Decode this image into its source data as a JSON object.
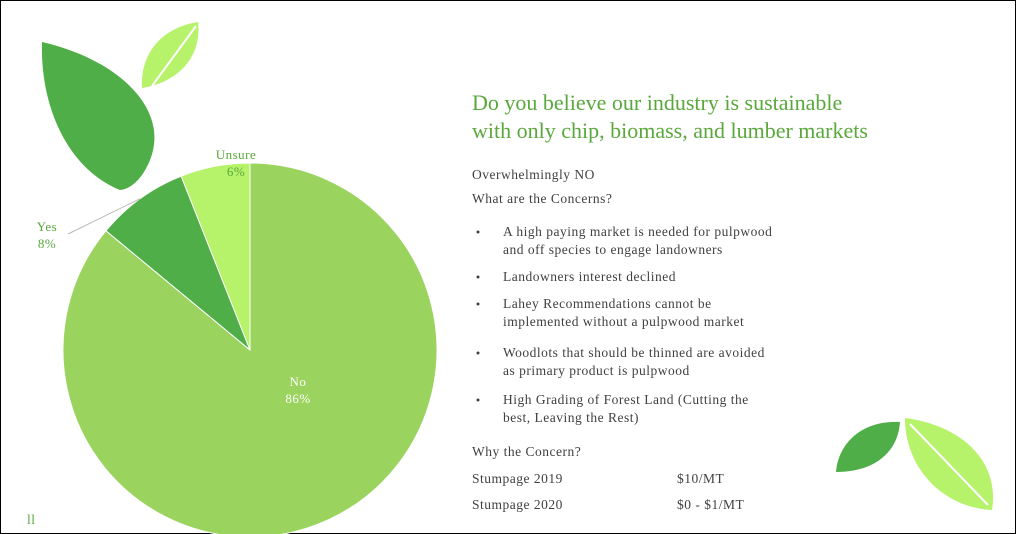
{
  "chart_data": {
    "type": "pie",
    "categories": [
      "No",
      "Yes",
      "Unsure"
    ],
    "values": [
      86,
      8,
      6
    ],
    "value_labels": [
      "86%",
      "8%",
      "6%"
    ],
    "colors": [
      "#9bd35f",
      "#4fae47",
      "#b6f26a"
    ]
  },
  "slide": {
    "title_lines": [
      "Do you believe our industry is sustainable",
      "with only chip, biomass, and lumber markets"
    ],
    "intro": [
      "Overwhelmingly NO",
      "What are the Concerns?"
    ],
    "bullets": [
      [
        "A high paying market is needed for pulpwood",
        "and off species to engage landowners"
      ],
      [
        "Landowners interest declined"
      ],
      [
        "Lahey Recommendations cannot be",
        "implemented without a pulpwood market"
      ],
      [
        "Woodlots that should be thinned are avoided",
        "as primary product is pulpwood"
      ],
      [
        "High Grading of Forest Land (Cutting the",
        "best, Leaving the Rest)"
      ]
    ],
    "why": "Why the Concern?",
    "stumpage": [
      [
        "Stumpage 2019",
        "$10/MT"
      ],
      [
        "Stumpage 2020",
        "$0 - $1/MT"
      ]
    ],
    "footer": "ll"
  }
}
